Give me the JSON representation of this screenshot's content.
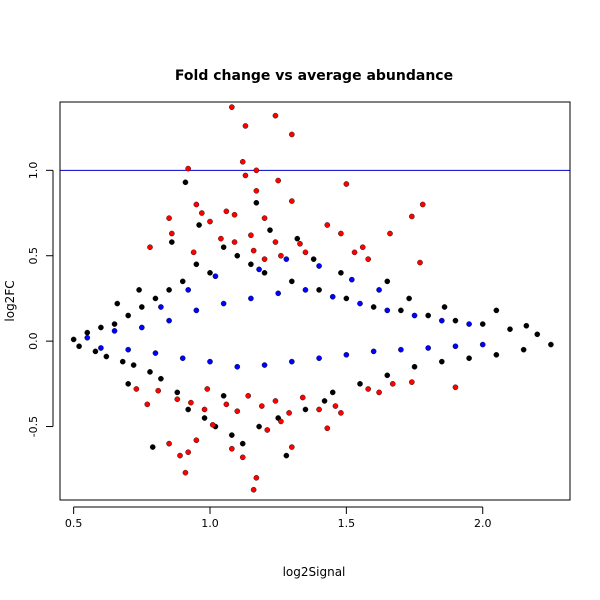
{
  "chart_data": {
    "type": "scatter",
    "title": "Fold change vs average abundance",
    "xlabel": "log2Signal",
    "ylabel": "log2FC",
    "xlim": [
      0.45,
      2.32
    ],
    "ylim": [
      -0.93,
      1.4
    ],
    "xticks": [
      0.5,
      1.0,
      1.5,
      2.0
    ],
    "xtick_labels": [
      "0.5",
      "1.0",
      "1.5",
      "2.0"
    ],
    "yticks": [
      -0.5,
      0.0,
      0.5,
      1.0
    ],
    "ytick_labels": [
      "-0.5",
      "0.0",
      "0.5",
      "1.0"
    ],
    "grid": false,
    "legend": "none",
    "colors": {
      "black": "#000000",
      "blue": "#0000ff",
      "red": "#ff0000",
      "hline": "#0000cc"
    },
    "reference_line": {
      "y": 1.0,
      "color": "#0000cc"
    },
    "series": [
      {
        "color": "#000000",
        "points": [
          [
            0.5,
            0.01
          ],
          [
            0.52,
            -0.03
          ],
          [
            0.55,
            0.05
          ],
          [
            0.58,
            -0.06
          ],
          [
            0.6,
            0.08
          ],
          [
            0.62,
            -0.09
          ],
          [
            0.65,
            0.1
          ],
          [
            0.68,
            -0.12
          ],
          [
            0.7,
            0.15
          ],
          [
            0.72,
            -0.14
          ],
          [
            0.75,
            0.2
          ],
          [
            0.78,
            -0.18
          ],
          [
            0.8,
            0.25
          ],
          [
            0.82,
            -0.22
          ],
          [
            0.85,
            0.3
          ],
          [
            0.88,
            -0.3
          ],
          [
            0.9,
            0.35
          ],
          [
            0.92,
            -0.4
          ],
          [
            0.95,
            0.45
          ],
          [
            0.98,
            -0.45
          ],
          [
            1.0,
            0.4
          ],
          [
            1.02,
            -0.5
          ],
          [
            1.05,
            0.55
          ],
          [
            1.08,
            -0.55
          ],
          [
            1.1,
            0.5
          ],
          [
            1.12,
            -0.6
          ],
          [
            1.15,
            0.45
          ],
          [
            1.18,
            -0.5
          ],
          [
            1.2,
            0.4
          ],
          [
            1.25,
            -0.45
          ],
          [
            1.3,
            0.35
          ],
          [
            1.35,
            -0.4
          ],
          [
            1.4,
            0.3
          ],
          [
            1.45,
            -0.3
          ],
          [
            1.5,
            0.25
          ],
          [
            1.55,
            -0.25
          ],
          [
            1.6,
            0.2
          ],
          [
            1.65,
            -0.2
          ],
          [
            1.7,
            0.18
          ],
          [
            1.75,
            -0.15
          ],
          [
            1.8,
            0.15
          ],
          [
            1.85,
            -0.12
          ],
          [
            1.9,
            0.12
          ],
          [
            1.95,
            -0.1
          ],
          [
            2.0,
            0.1
          ],
          [
            2.05,
            -0.08
          ],
          [
            2.1,
            0.07
          ],
          [
            2.15,
            -0.05
          ],
          [
            2.2,
            0.04
          ],
          [
            2.25,
            -0.02
          ],
          [
            0.91,
            0.93
          ],
          [
            0.79,
            -0.62
          ],
          [
            1.17,
            0.81
          ],
          [
            1.28,
            -0.67
          ],
          [
            0.96,
            0.68
          ],
          [
            1.32,
            0.6
          ],
          [
            0.86,
            0.58
          ],
          [
            1.48,
            0.4
          ],
          [
            1.65,
            0.35
          ],
          [
            1.73,
            0.25
          ],
          [
            1.86,
            0.2
          ],
          [
            2.05,
            0.18
          ],
          [
            2.16,
            0.09
          ],
          [
            0.66,
            0.22
          ],
          [
            0.7,
            -0.25
          ],
          [
            0.74,
            0.3
          ],
          [
            1.05,
            -0.32
          ],
          [
            1.42,
            -0.35
          ],
          [
            1.38,
            0.48
          ],
          [
            1.22,
            0.65
          ]
        ]
      },
      {
        "color": "#0000ff",
        "points": [
          [
            0.55,
            0.02
          ],
          [
            0.6,
            -0.04
          ],
          [
            0.65,
            0.06
          ],
          [
            0.7,
            -0.05
          ],
          [
            0.75,
            0.08
          ],
          [
            0.8,
            -0.07
          ],
          [
            0.85,
            0.12
          ],
          [
            0.9,
            -0.1
          ],
          [
            0.95,
            0.18
          ],
          [
            1.0,
            -0.12
          ],
          [
            1.05,
            0.22
          ],
          [
            1.1,
            -0.15
          ],
          [
            1.15,
            0.25
          ],
          [
            1.2,
            -0.14
          ],
          [
            1.25,
            0.28
          ],
          [
            1.3,
            -0.12
          ],
          [
            1.35,
            0.3
          ],
          [
            1.4,
            -0.1
          ],
          [
            1.45,
            0.26
          ],
          [
            1.5,
            -0.08
          ],
          [
            1.55,
            0.22
          ],
          [
            1.6,
            -0.06
          ],
          [
            1.65,
            0.18
          ],
          [
            1.7,
            -0.05
          ],
          [
            1.75,
            0.15
          ],
          [
            1.8,
            -0.04
          ],
          [
            1.85,
            0.12
          ],
          [
            1.9,
            -0.03
          ],
          [
            1.95,
            0.1
          ],
          [
            2.0,
            -0.02
          ],
          [
            1.02,
            0.38
          ],
          [
            1.18,
            0.42
          ],
          [
            1.28,
            0.48
          ],
          [
            1.4,
            0.44
          ],
          [
            1.52,
            0.36
          ],
          [
            1.62,
            0.3
          ],
          [
            0.92,
            0.3
          ],
          [
            0.82,
            0.2
          ]
        ]
      },
      {
        "color": "#ff0000",
        "points": [
          [
            1.08,
            1.37
          ],
          [
            1.24,
            1.32
          ],
          [
            1.13,
            1.26
          ],
          [
            1.3,
            1.21
          ],
          [
            0.92,
            1.01
          ],
          [
            1.12,
            1.05
          ],
          [
            1.17,
            1.0
          ],
          [
            1.25,
            0.94
          ],
          [
            1.13,
            0.97
          ],
          [
            1.5,
            0.92
          ],
          [
            1.17,
            0.88
          ],
          [
            1.3,
            0.82
          ],
          [
            1.78,
            0.8
          ],
          [
            1.74,
            0.73
          ],
          [
            0.95,
            0.8
          ],
          [
            0.97,
            0.75
          ],
          [
            1.06,
            0.76
          ],
          [
            1.09,
            0.74
          ],
          [
            1.2,
            0.72
          ],
          [
            1.0,
            0.7
          ],
          [
            1.43,
            0.68
          ],
          [
            1.48,
            0.63
          ],
          [
            1.66,
            0.63
          ],
          [
            1.56,
            0.55
          ],
          [
            0.85,
            0.72
          ],
          [
            0.78,
            0.55
          ],
          [
            1.15,
            0.62
          ],
          [
            1.24,
            0.58
          ],
          [
            1.33,
            0.57
          ],
          [
            1.26,
            0.5
          ],
          [
            1.35,
            0.52
          ],
          [
            1.53,
            0.52
          ],
          [
            1.58,
            0.48
          ],
          [
            1.2,
            0.48
          ],
          [
            0.94,
            0.52
          ],
          [
            1.04,
            0.6
          ],
          [
            1.09,
            0.58
          ],
          [
            1.77,
            0.46
          ],
          [
            0.86,
            0.63
          ],
          [
            1.16,
            0.53
          ],
          [
            0.73,
            -0.28
          ],
          [
            0.81,
            -0.29
          ],
          [
            0.88,
            -0.34
          ],
          [
            0.93,
            -0.36
          ],
          [
            0.98,
            -0.4
          ],
          [
            1.06,
            -0.37
          ],
          [
            1.1,
            -0.41
          ],
          [
            1.14,
            -0.32
          ],
          [
            1.19,
            -0.38
          ],
          [
            1.24,
            -0.35
          ],
          [
            1.29,
            -0.42
          ],
          [
            1.34,
            -0.33
          ],
          [
            1.4,
            -0.4
          ],
          [
            1.46,
            -0.38
          ],
          [
            1.48,
            -0.42
          ],
          [
            1.58,
            -0.28
          ],
          [
            1.62,
            -0.3
          ],
          [
            1.67,
            -0.25
          ],
          [
            1.74,
            -0.24
          ],
          [
            1.9,
            -0.27
          ],
          [
            0.85,
            -0.6
          ],
          [
            0.89,
            -0.67
          ],
          [
            0.92,
            -0.65
          ],
          [
            0.95,
            -0.58
          ],
          [
            0.91,
            -0.77
          ],
          [
            1.08,
            -0.63
          ],
          [
            1.17,
            -0.8
          ],
          [
            1.16,
            -0.87
          ],
          [
            1.12,
            -0.68
          ],
          [
            1.3,
            -0.62
          ],
          [
            1.26,
            -0.47
          ],
          [
            1.43,
            -0.51
          ],
          [
            0.77,
            -0.37
          ],
          [
            1.01,
            -0.49
          ],
          [
            1.21,
            -0.52
          ],
          [
            0.99,
            -0.28
          ]
        ]
      }
    ]
  }
}
